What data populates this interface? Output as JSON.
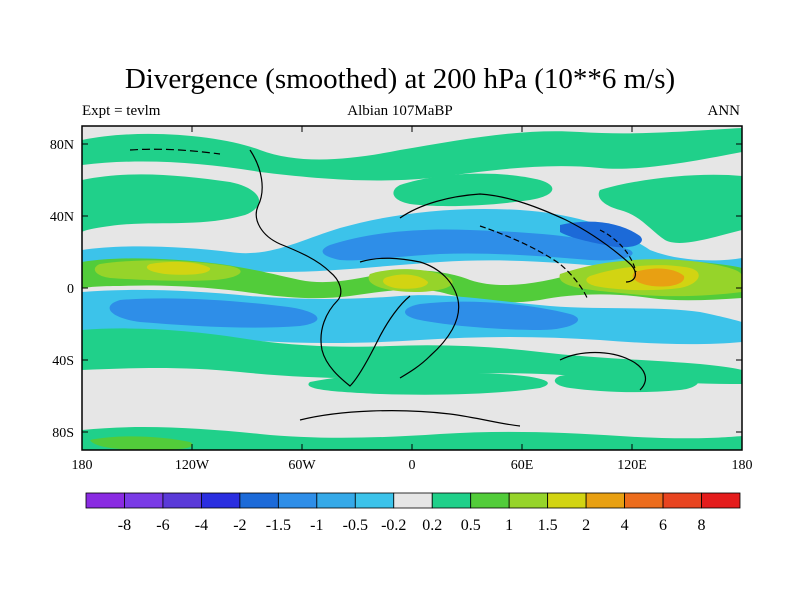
{
  "title": "Divergence (smoothed) at 200 hPa (10**6 m/s)",
  "subtitle": {
    "left": "Expt = tevlm",
    "center": "Albian   107MaBP",
    "right": "ANN"
  },
  "axes": {
    "x_ticks": [
      {
        "lon": -180,
        "label": "180"
      },
      {
        "lon": -120,
        "label": "120W"
      },
      {
        "lon": -60,
        "label": "60W"
      },
      {
        "lon": 0,
        "label": "0"
      },
      {
        "lon": 60,
        "label": "60E"
      },
      {
        "lon": 120,
        "label": "120E"
      },
      {
        "lon": 180,
        "label": "180"
      }
    ],
    "y_ticks": [
      {
        "lat": 80,
        "label": "80N"
      },
      {
        "lat": 40,
        "label": "40N"
      },
      {
        "lat": 0,
        "label": "0"
      },
      {
        "lat": -40,
        "label": "40S"
      },
      {
        "lat": -80,
        "label": "80S"
      }
    ],
    "lon_range": [
      -180,
      180
    ],
    "lat_range": [
      -90,
      90
    ]
  },
  "colorbar": {
    "colors": [
      "#8a2be2",
      "#7a3be6",
      "#5a3ad8",
      "#2a2ee0",
      "#1c6ad8",
      "#2e8ee8",
      "#35a9e8",
      "#3cc3ea",
      "#e6e6e6",
      "#20d08a",
      "#52cc3a",
      "#96d42a",
      "#d2d412",
      "#e8a012",
      "#ec6c1c",
      "#e84420",
      "#e41c1c"
    ],
    "labels": [
      "-8",
      "-6",
      "-4",
      "-2",
      "-1.5",
      "-1",
      "-0.5",
      "-0.2",
      "0.2",
      "0.5",
      "1",
      "1.5",
      "2",
      "4",
      "6",
      "8"
    ]
  },
  "colors": {
    "background": "#e6e6e6",
    "strong_conv": "#1c6ad8",
    "conv": "#2e8ee8",
    "weak_conv": "#3cc3ea",
    "weak_div": "#20d08a",
    "div": "#52cc3a",
    "mod_div": "#96d42a",
    "strong_div": "#d2d412",
    "max_div": "#e8a012",
    "coast": "#000000"
  }
}
